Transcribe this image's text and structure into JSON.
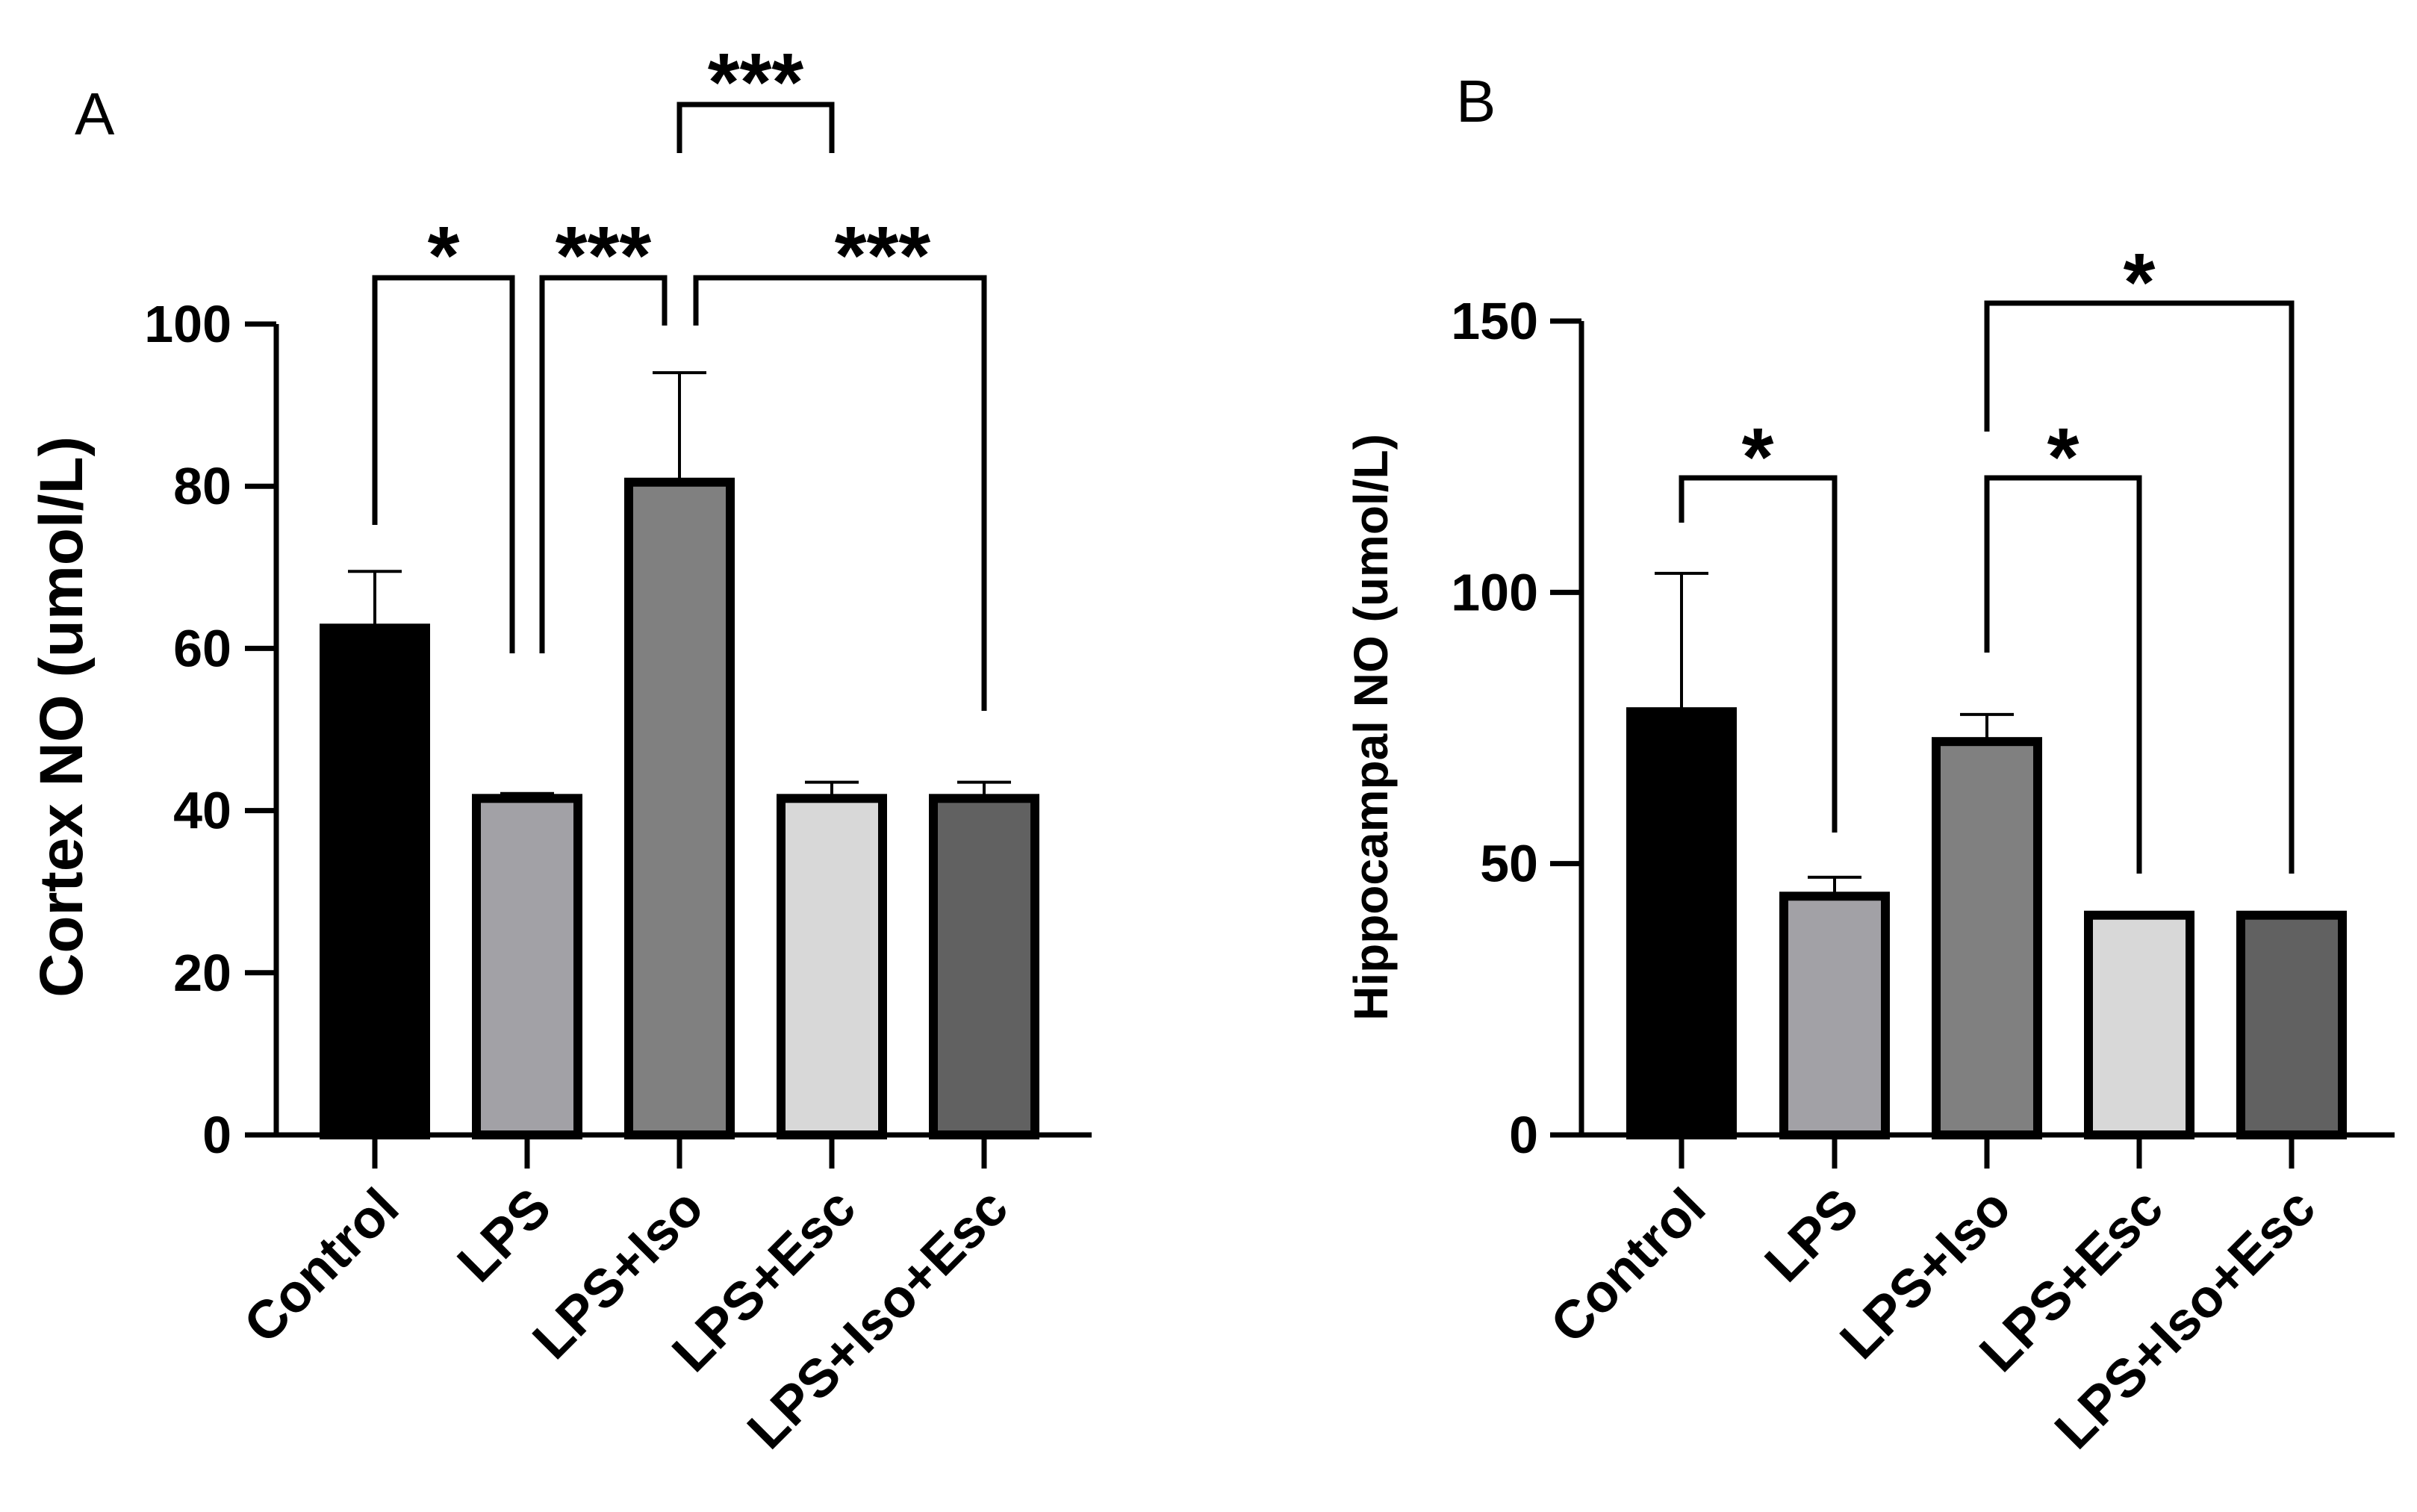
{
  "chart_data": [
    {
      "panel": "A",
      "type": "bar",
      "ylabel": "Cortex NO (umol/L)",
      "xlabel": "",
      "categories": [
        "Control",
        "LPS",
        "LPS+Iso",
        "LPS+Esc",
        "LPS+Iso+Esc"
      ],
      "values": [
        62.5,
        41.5,
        80.5,
        41.5,
        41.5
      ],
      "errors": [
        7,
        0.6,
        13.5,
        2,
        2
      ],
      "colors": [
        "#000000",
        "#a2a1a6",
        "#808080",
        "#d8d8d8",
        "#616161"
      ],
      "ylim": [
        0,
        100
      ],
      "yticks": [
        0,
        20,
        40,
        60,
        80,
        100
      ],
      "grid": false,
      "significance": [
        {
          "from": "Control",
          "to": "LPS",
          "label": "*"
        },
        {
          "from": "LPS",
          "to": "LPS+Iso",
          "label": "***"
        },
        {
          "from": "LPS+Iso",
          "to": "LPS+Iso+Esc",
          "label": "***"
        },
        {
          "from": "LPS+Iso",
          "to": "LPS+Esc",
          "label": "***"
        }
      ]
    },
    {
      "panel": "B",
      "type": "bar",
      "ylabel": "Hippocampal NO (umol/L)",
      "xlabel": "",
      "categories": [
        "Control",
        "LPS",
        "LPS+Iso",
        "LPS+Esc",
        "LPS+Iso+Esc"
      ],
      "values": [
        78,
        44,
        72.5,
        40.5,
        40.5
      ],
      "errors": [
        25.5,
        3.5,
        5,
        0.5,
        0.5
      ],
      "colors": [
        "#000000",
        "#a2a1a6",
        "#808080",
        "#d8d8d8",
        "#616161"
      ],
      "ylim": [
        0,
        150
      ],
      "yticks": [
        0,
        50,
        100,
        150
      ],
      "grid": false,
      "significance": [
        {
          "from": "Control",
          "to": "LPS",
          "label": "*"
        },
        {
          "from": "LPS+Iso",
          "to": "LPS+Esc",
          "label": "*"
        },
        {
          "from": "LPS+Iso",
          "to": "LPS+Iso+Esc",
          "label": "*"
        }
      ]
    }
  ]
}
